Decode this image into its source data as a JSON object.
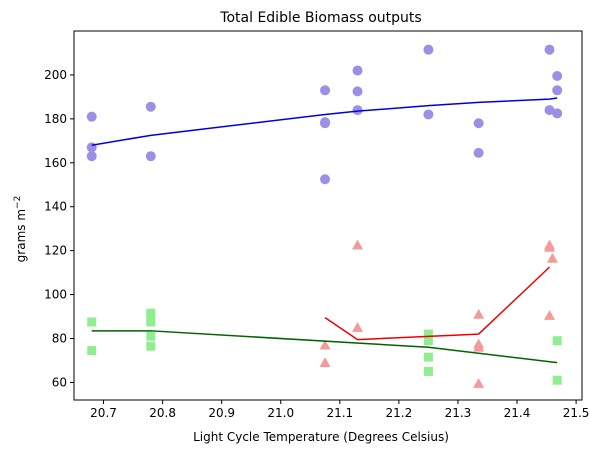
{
  "chart_data": {
    "type": "scatter",
    "title": "Total Edible Biomass outputs",
    "xlabel": "Light Cycle Temperature (Degrees Celsius)",
    "ylabel_base": "grams m",
    "ylabel_sup": "−2",
    "xlim": [
      20.65,
      21.51
    ],
    "ylim": [
      52,
      220
    ],
    "xticks": [
      "20.7",
      "20.8",
      "20.9",
      "21.0",
      "21.1",
      "21.2",
      "21.3",
      "21.4",
      "21.5"
    ],
    "yticks": [
      "60",
      "80",
      "100",
      "120",
      "140",
      "160",
      "180",
      "200"
    ],
    "grid": false,
    "series": [
      {
        "marker": "circle",
        "color": "#9b8fe6",
        "points": [
          [
            20.68,
            181
          ],
          [
            20.68,
            167
          ],
          [
            20.68,
            163
          ],
          [
            20.78,
            185.5
          ],
          [
            20.78,
            163
          ],
          [
            21.075,
            193
          ],
          [
            21.075,
            178.5
          ],
          [
            21.075,
            178
          ],
          [
            21.075,
            152.5
          ],
          [
            21.13,
            202
          ],
          [
            21.13,
            192.5
          ],
          [
            21.13,
            184
          ],
          [
            21.25,
            211.5
          ],
          [
            21.25,
            182
          ],
          [
            21.335,
            178
          ],
          [
            21.335,
            164.5
          ],
          [
            21.455,
            211.5
          ],
          [
            21.455,
            184
          ],
          [
            21.468,
            199.5
          ],
          [
            21.468,
            193
          ],
          [
            21.468,
            182.5
          ]
        ],
        "line_color": "#0000dd",
        "line": [
          [
            20.68,
            168
          ],
          [
            20.78,
            172.5
          ],
          [
            21.075,
            182
          ],
          [
            21.13,
            183.5
          ],
          [
            21.25,
            186
          ],
          [
            21.335,
            187.5
          ],
          [
            21.455,
            189
          ],
          [
            21.468,
            189.5
          ]
        ]
      },
      {
        "marker": "square",
        "color": "#90ee90",
        "points": [
          [
            20.68,
            87.5
          ],
          [
            20.68,
            74.5
          ],
          [
            20.78,
            91.5
          ],
          [
            20.78,
            89.5
          ],
          [
            20.78,
            87.5
          ],
          [
            20.78,
            81
          ],
          [
            20.78,
            76.5
          ],
          [
            21.25,
            82
          ],
          [
            21.25,
            79
          ],
          [
            21.25,
            71.5
          ],
          [
            21.25,
            65
          ],
          [
            21.468,
            79
          ],
          [
            21.468,
            61
          ]
        ],
        "line_color": "#006400",
        "line": [
          [
            20.68,
            83.5
          ],
          [
            20.78,
            83.5
          ],
          [
            21.25,
            76
          ],
          [
            21.468,
            69
          ]
        ]
      },
      {
        "marker": "triangle",
        "color": "#f59a9a",
        "points": [
          [
            21.075,
            77
          ],
          [
            21.075,
            69
          ],
          [
            21.13,
            122.5
          ],
          [
            21.13,
            85
          ],
          [
            21.335,
            91
          ],
          [
            21.335,
            77.5
          ],
          [
            21.335,
            76
          ],
          [
            21.335,
            59.5
          ],
          [
            21.455,
            122.5
          ],
          [
            21.455,
            121.5
          ],
          [
            21.46,
            116.5
          ],
          [
            21.455,
            90.5
          ]
        ],
        "line_color": "#ee0000",
        "line": [
          [
            21.075,
            89.5
          ],
          [
            21.13,
            79.5
          ],
          [
            21.335,
            82
          ],
          [
            21.455,
            112.5
          ]
        ]
      }
    ]
  }
}
